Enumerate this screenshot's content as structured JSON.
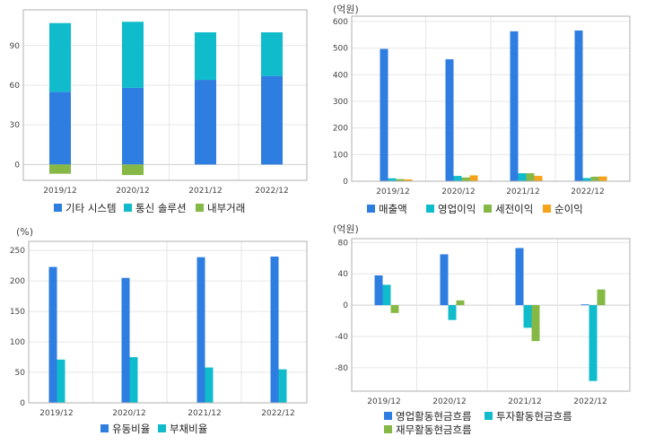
{
  "colors": {
    "blue": "#2e7de1",
    "teal": "#10bccb",
    "green": "#86b846",
    "orange": "#f5a31b"
  },
  "chart_data": [
    {
      "id": "revenue-composition",
      "type": "bar",
      "stacked": true,
      "categories": [
        "2019/12",
        "2020/12",
        "2021/12",
        "2022/12"
      ],
      "series": [
        {
          "name": "기타 시스템",
          "color_key": "blue",
          "values": [
            55,
            58,
            64,
            67
          ]
        },
        {
          "name": "통신 솔루션",
          "color_key": "teal",
          "values": [
            52,
            50,
            36,
            33
          ]
        },
        {
          "name": "내부거래",
          "color_key": "green",
          "values": [
            -7,
            -8,
            0,
            0
          ]
        }
      ],
      "unit_label": "",
      "ylim": [
        -12,
        117
      ],
      "yticks": [
        0,
        30,
        60,
        90
      ],
      "grid": true,
      "legend": "bottom"
    },
    {
      "id": "income",
      "type": "bar",
      "categories": [
        "2019/12",
        "2020/12",
        "2021/12",
        "2022/12"
      ],
      "series": [
        {
          "name": "매출액",
          "color_key": "blue",
          "values": [
            497,
            458,
            563,
            566
          ]
        },
        {
          "name": "영업이익",
          "color_key": "teal",
          "values": [
            11,
            20,
            30,
            12
          ]
        },
        {
          "name": "세전이익",
          "color_key": "green",
          "values": [
            8,
            14,
            30,
            17
          ]
        },
        {
          "name": "순이익",
          "color_key": "orange",
          "values": [
            7,
            22,
            20,
            18
          ]
        }
      ],
      "unit_label": "(억원)",
      "ylim": [
        0,
        620
      ],
      "yticks": [
        0,
        100,
        200,
        300,
        400,
        500,
        600
      ],
      "grid": true,
      "legend": "bottom"
    },
    {
      "id": "ratios",
      "type": "bar",
      "categories": [
        "2019/12",
        "2020/12",
        "2021/12",
        "2022/12"
      ],
      "series": [
        {
          "name": "유동비율",
          "color_key": "blue",
          "values": [
            223,
            205,
            239,
            240
          ]
        },
        {
          "name": "부채비율",
          "color_key": "teal",
          "values": [
            71,
            75,
            58,
            55
          ]
        }
      ],
      "unit_label": "(%)",
      "ylim": [
        0,
        265
      ],
      "yticks": [
        0,
        50,
        100,
        150,
        200,
        250
      ],
      "grid": true,
      "legend": "bottom"
    },
    {
      "id": "cashflow",
      "type": "bar",
      "categories": [
        "2019/12",
        "2020/12",
        "2021/12",
        "2022/12"
      ],
      "series": [
        {
          "name": "영업활동현금흐름",
          "color_key": "blue",
          "values": [
            38,
            65,
            73,
            1
          ]
        },
        {
          "name": "투자활동현금흐름",
          "color_key": "teal",
          "values": [
            26,
            -19,
            -29,
            -97
          ]
        },
        {
          "name": "재무활동현금흐름",
          "color_key": "green",
          "values": [
            -10,
            6,
            -46,
            20
          ]
        }
      ],
      "unit_label": "(억원)",
      "ylim": [
        -110,
        85
      ],
      "yticks": [
        -80,
        -40,
        0,
        40,
        80
      ],
      "grid": true,
      "legend": "bottom"
    }
  ]
}
